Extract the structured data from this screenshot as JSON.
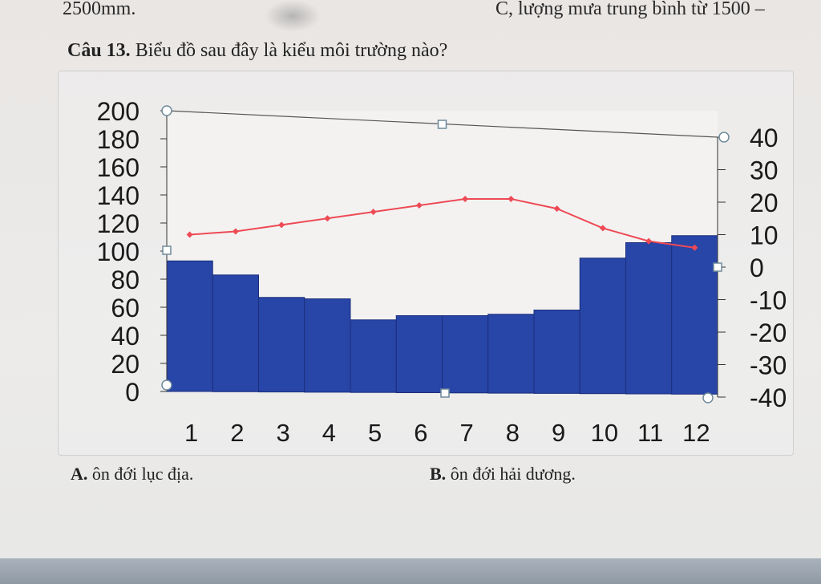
{
  "top_text": {
    "left": "2500mm.",
    "right": "C, lượng mưa trung bình từ 1500 –"
  },
  "question": {
    "number": "Câu 13.",
    "text": "Biểu đồ sau đây là kiểu môi trường nào?"
  },
  "answers": {
    "a_label": "A.",
    "a_text": "ôn đới lục địa.",
    "b_label": "B.",
    "b_text": "ôn đới hải dương."
  },
  "chart_data": {
    "type": "bar",
    "categories": [
      "1",
      "2",
      "3",
      "4",
      "5",
      "6",
      "7",
      "8",
      "9",
      "10",
      "11",
      "12"
    ],
    "series": [
      {
        "type": "bar",
        "axis": "left",
        "values": [
          93,
          83,
          67,
          66,
          51,
          54,
          54,
          55,
          58,
          95,
          106,
          111
        ],
        "color": "#2845a8"
      },
      {
        "type": "line",
        "axis": "right",
        "values": [
          10,
          11,
          13,
          15,
          17,
          19,
          21,
          21,
          18,
          12,
          8,
          6
        ],
        "color": "#ee4a55"
      }
    ],
    "y_left": {
      "ylim": [
        0,
        200
      ],
      "ticks": [
        0,
        20,
        40,
        60,
        80,
        100,
        120,
        140,
        160,
        180,
        200
      ]
    },
    "y_right": {
      "ylim": [
        -40,
        40
      ],
      "ticks": [
        40,
        30,
        20,
        10,
        0,
        -10,
        -20,
        -30,
        -40
      ]
    },
    "title": "",
    "xlabel": "",
    "ylabel": ""
  }
}
